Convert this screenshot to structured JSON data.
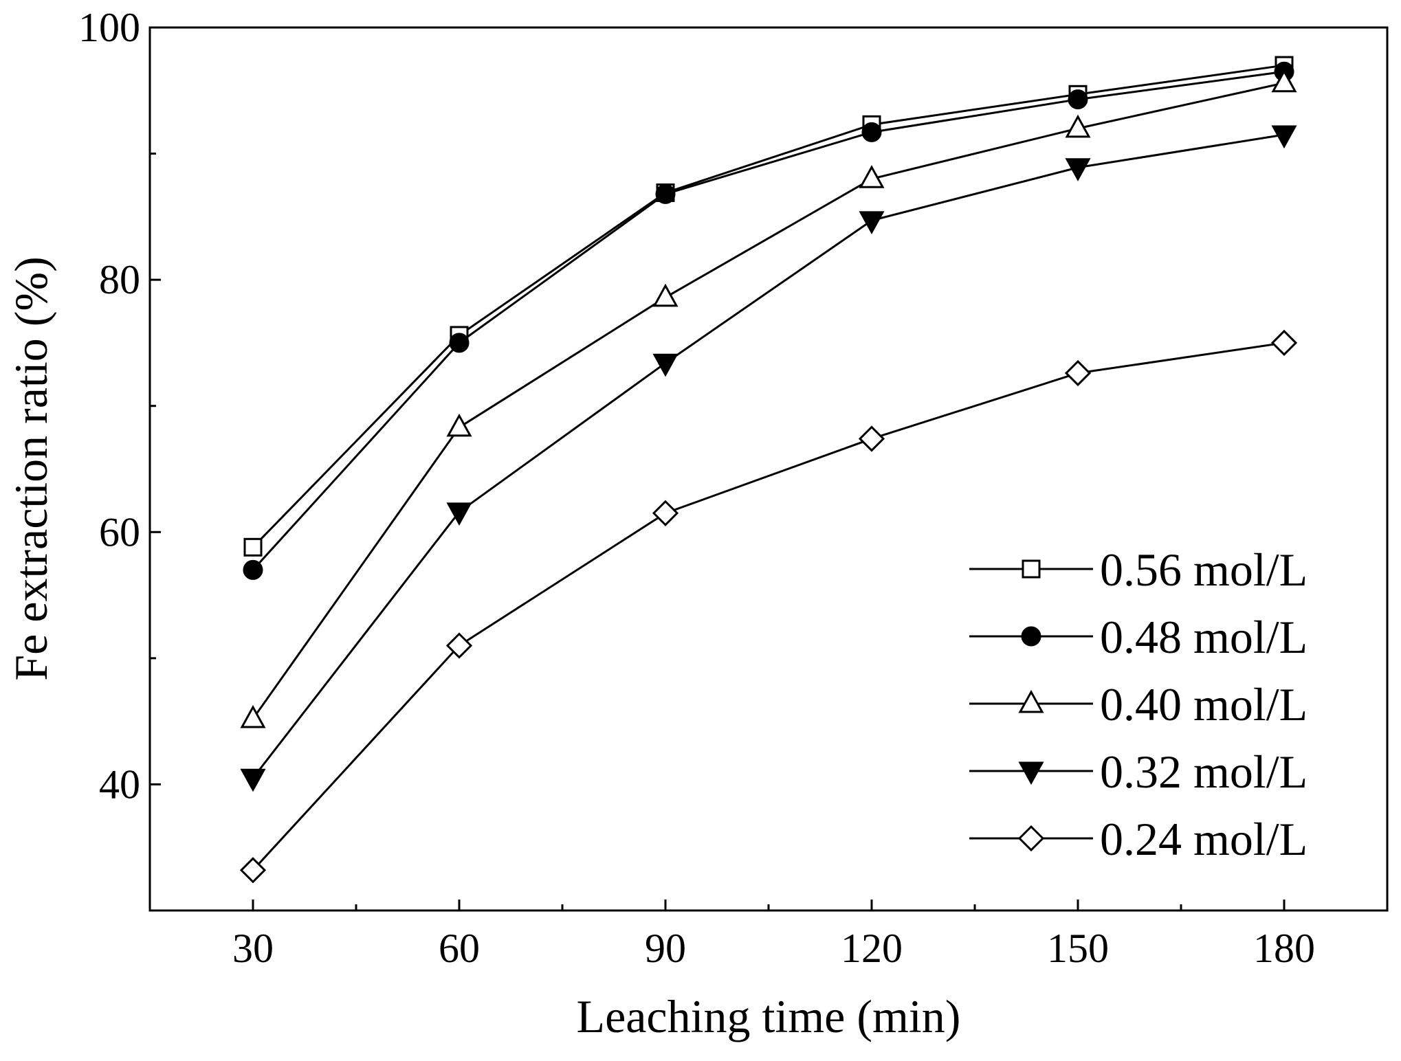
{
  "chart_data": {
    "type": "line",
    "title": "",
    "xlabel": "Leaching time (min)",
    "ylabel": "Fe extraction ratio (%)",
    "x": [
      30,
      60,
      90,
      120,
      150,
      180
    ],
    "xlim": [
      15,
      195
    ],
    "ylim": [
      30,
      100
    ],
    "xticks": [
      30,
      60,
      90,
      120,
      150,
      180
    ],
    "yticks": [
      40,
      60,
      80,
      100
    ],
    "legend_position": "bottom-right",
    "series": [
      {
        "name": "0.56 mol/L",
        "marker": "square-open",
        "values": [
          58.8,
          75.6,
          86.9,
          92.3,
          94.7,
          97.0
        ]
      },
      {
        "name": "0.48 mol/L",
        "marker": "circle-filled",
        "values": [
          57.0,
          75.0,
          86.8,
          91.7,
          94.3,
          96.5
        ]
      },
      {
        "name": "0.40 mol/L",
        "marker": "triangle-up-open",
        "values": [
          45.2,
          68.3,
          78.6,
          88.0,
          92.0,
          95.6
        ]
      },
      {
        "name": "0.32 mol/L",
        "marker": "triangle-down-filled",
        "values": [
          40.5,
          61.6,
          73.4,
          84.7,
          88.9,
          91.5
        ]
      },
      {
        "name": "0.24 mol/L",
        "marker": "diamond-open",
        "values": [
          33.2,
          51.0,
          61.5,
          67.4,
          72.6,
          75.0
        ]
      }
    ]
  }
}
